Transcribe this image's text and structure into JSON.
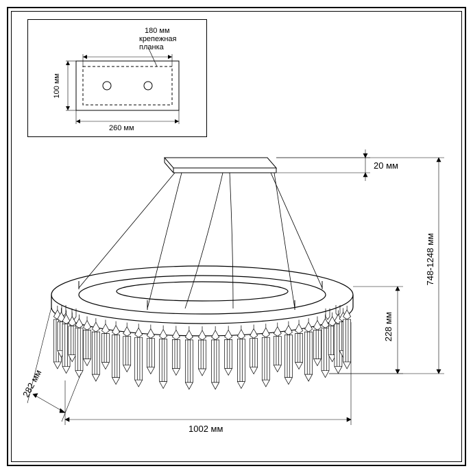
{
  "inset": {
    "top_dim": "180 мм",
    "annotation": "крепежная\nпланка",
    "left_dim": "100 мм",
    "bottom_dim": "260 мм"
  },
  "main": {
    "top_right": "20 мм",
    "mid_height": "228 мм",
    "full_height": "748-1248 мм",
    "depth": "282 мм",
    "width": "1002 мм"
  },
  "colors": {
    "line": "#000000",
    "bg": "#ffffff",
    "light_line": "#999999"
  },
  "stroke": {
    "main": 1,
    "thin": 0.6
  }
}
